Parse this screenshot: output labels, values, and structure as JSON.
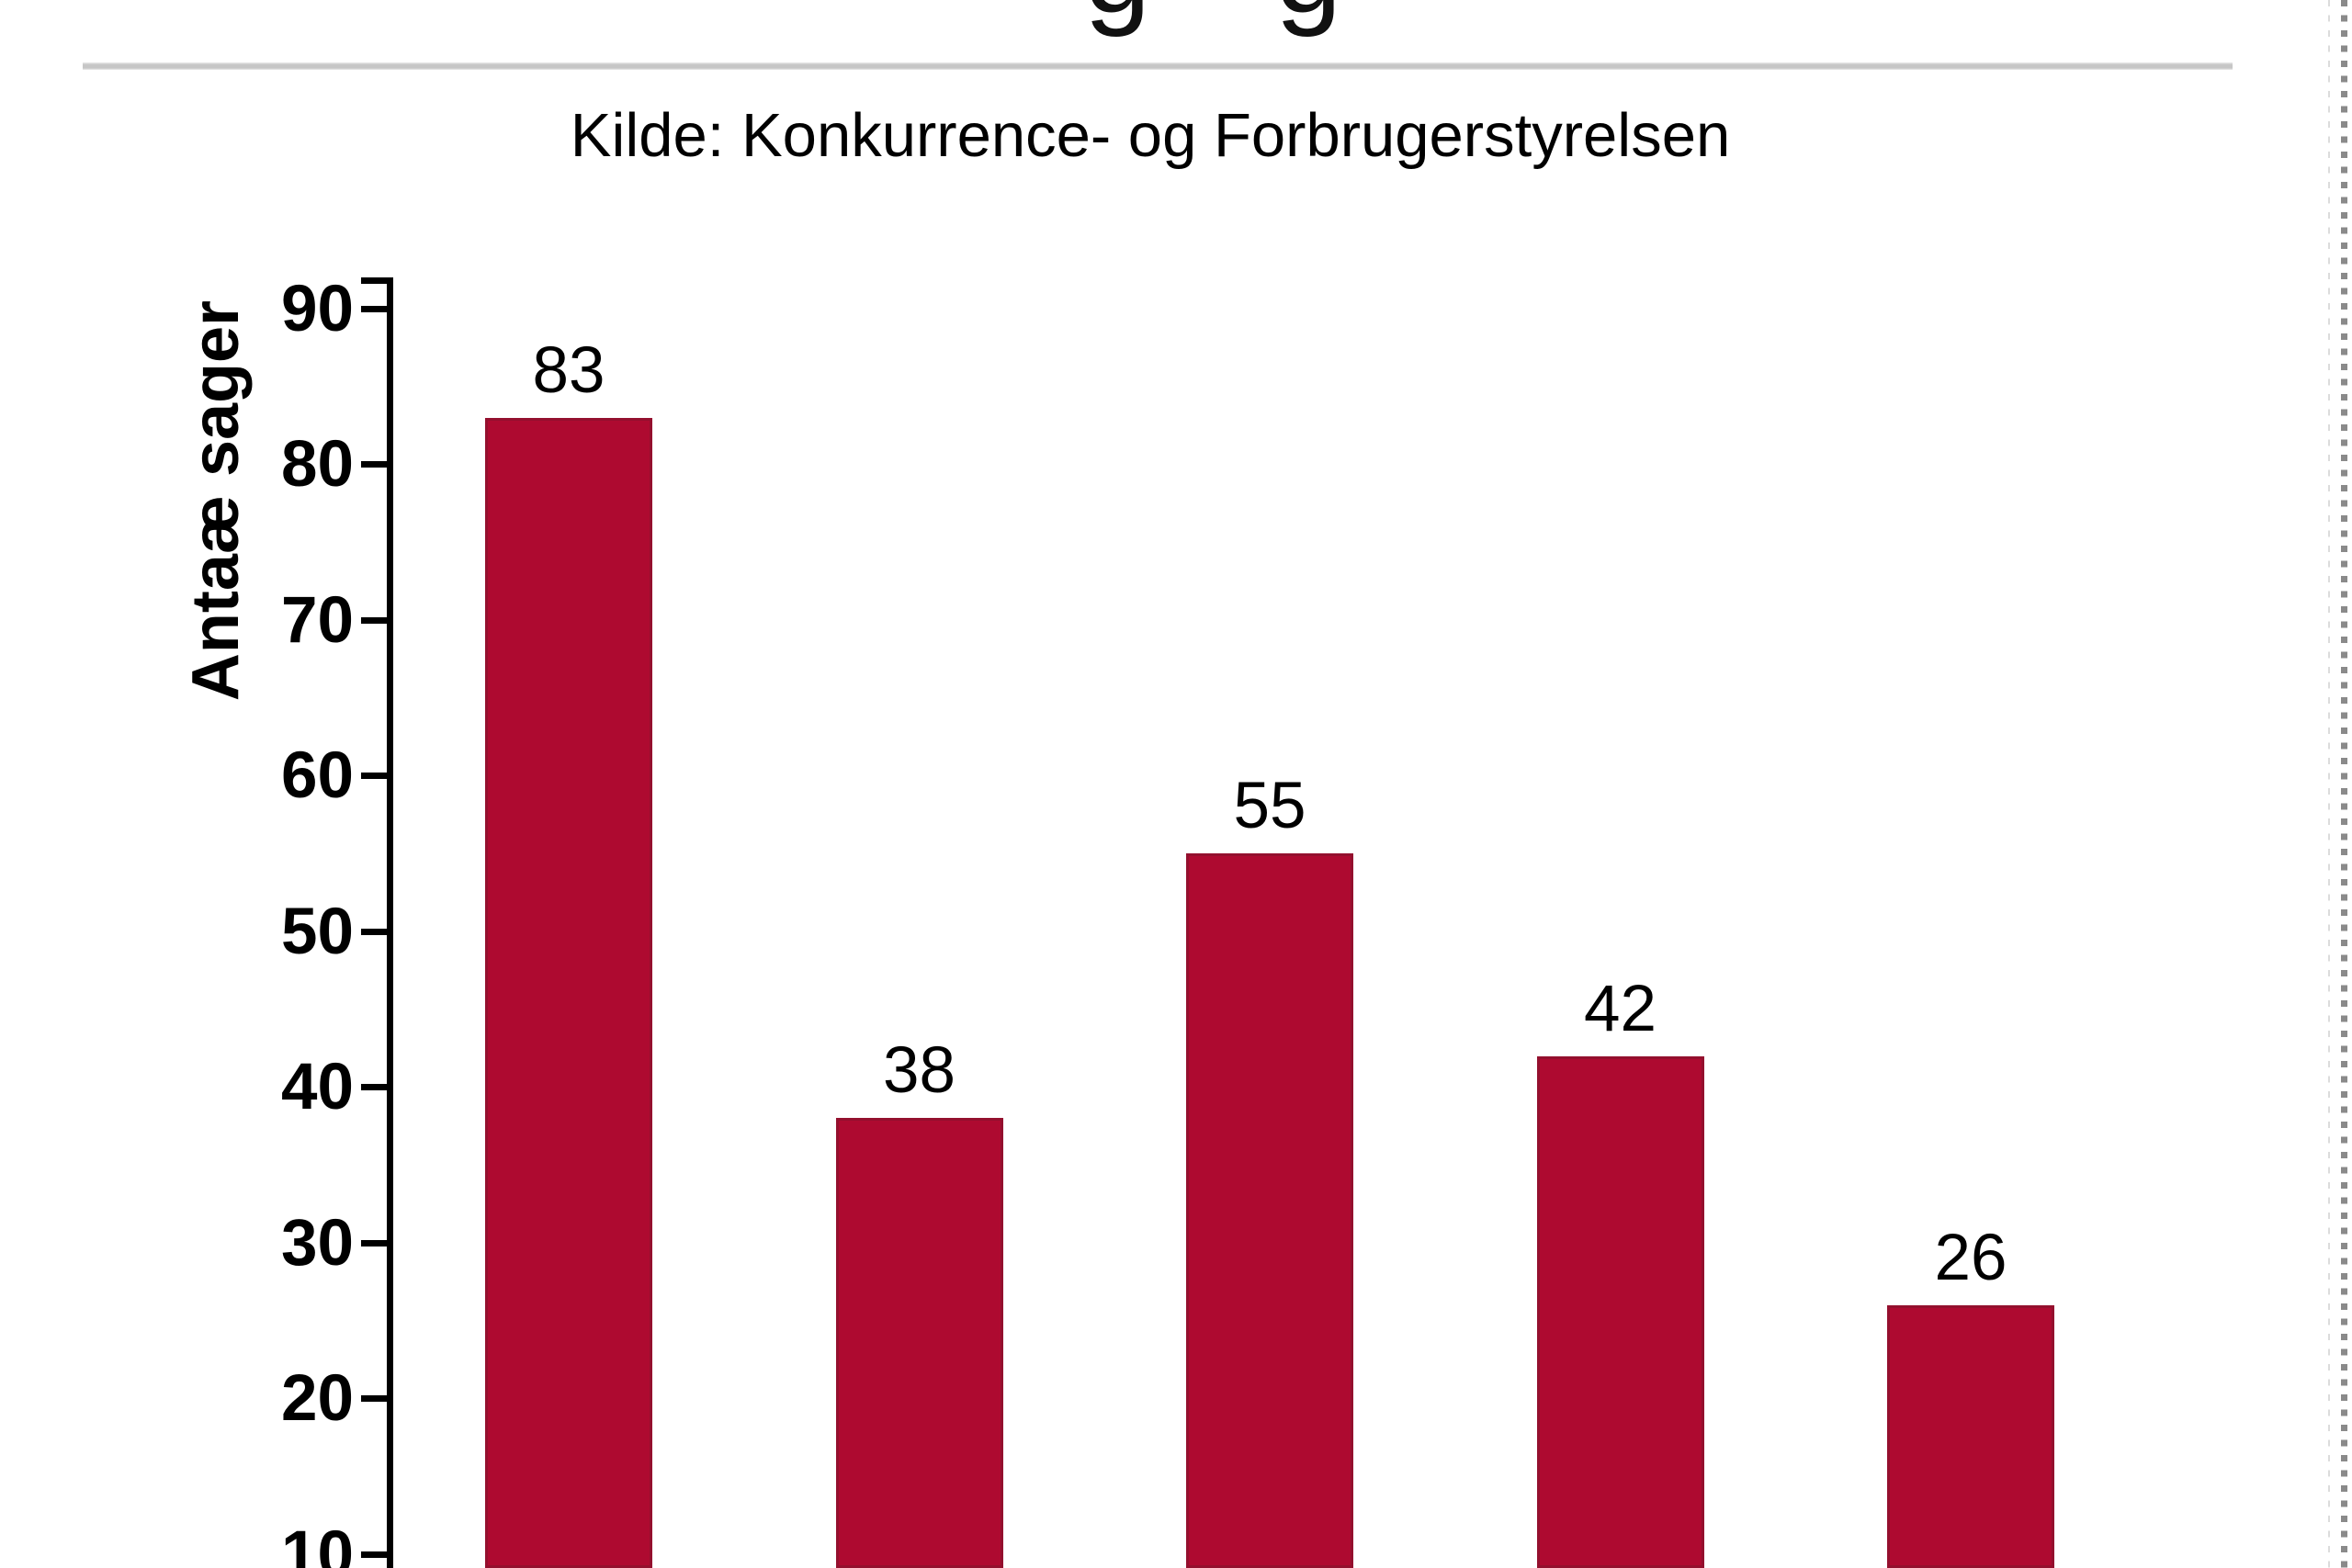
{
  "header": {
    "cutoff_title_glyphs": [
      "g",
      "g"
    ]
  },
  "chart_data": {
    "type": "bar",
    "source": "Kilde: Konkurrence- og Forbrugerstyrelsen",
    "ylabel": "Antaæ sager",
    "values": [
      83,
      38,
      55,
      42,
      26
    ],
    "bar_value_labels": [
      "83",
      "38",
      "55",
      "42",
      "26"
    ],
    "yticks": [
      90,
      80,
      70,
      60,
      50,
      40,
      30,
      20,
      10
    ],
    "ylim_visible_top": 92,
    "x_axis_visible": false,
    "grid": false,
    "legend": "none",
    "bar_color": "#ae0a30",
    "bar_edge_color": "#94102e",
    "text_color": "#000000",
    "divider_color": "#c6c6c6",
    "dotted_guide_color": "#8a8a8a"
  }
}
